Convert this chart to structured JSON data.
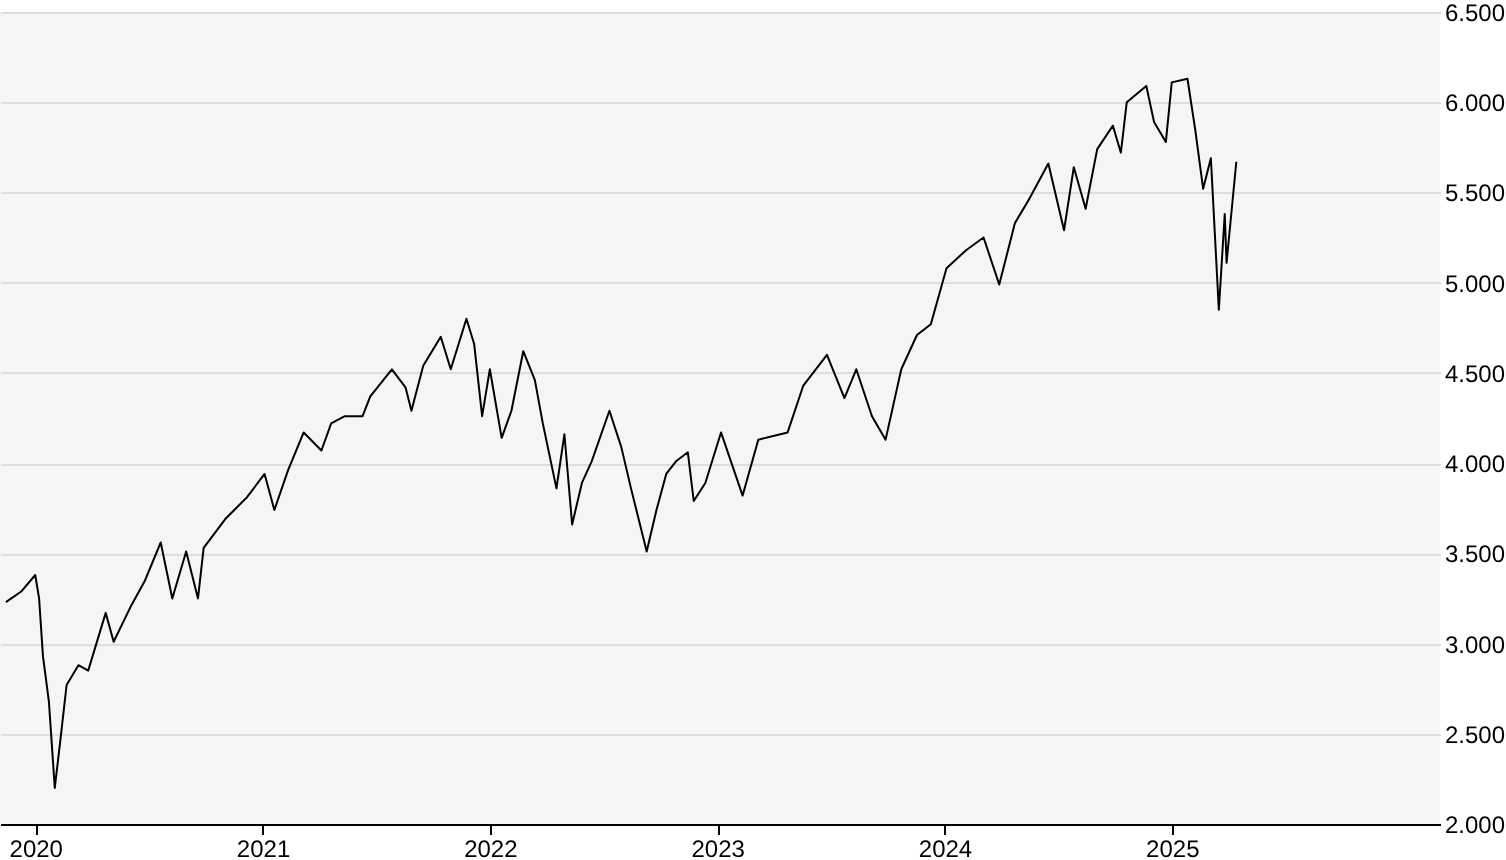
{
  "chart_data": {
    "type": "line",
    "x": [
      2019.871,
      2019.94,
      2020.0,
      2020.017,
      2020.034,
      2020.06,
      2020.086,
      2020.112,
      2020.138,
      2020.19,
      2020.233,
      2020.31,
      2020.345,
      2020.422,
      2020.483,
      2020.552,
      2020.603,
      2020.664,
      2020.716,
      2020.741,
      2020.836,
      2020.931,
      2021.009,
      2021.052,
      2021.112,
      2021.181,
      2021.259,
      2021.302,
      2021.362,
      2021.44,
      2021.474,
      2021.569,
      2021.629,
      2021.655,
      2021.707,
      2021.784,
      2021.828,
      2021.897,
      2021.931,
      2021.966,
      2022.0,
      2022.052,
      2022.095,
      2022.147,
      2022.198,
      2022.233,
      2022.293,
      2022.328,
      2022.362,
      2022.405,
      2022.448,
      2022.526,
      2022.578,
      2022.621,
      2022.69,
      2022.733,
      2022.776,
      2022.819,
      2022.871,
      2022.897,
      2022.948,
      2023.017,
      2023.112,
      2023.181,
      2023.31,
      2023.379,
      2023.483,
      2023.56,
      2023.612,
      2023.681,
      2023.741,
      2023.81,
      2023.879,
      2023.94,
      2024.009,
      2024.095,
      2024.172,
      2024.241,
      2024.31,
      2024.371,
      2024.457,
      2024.526,
      2024.569,
      2024.621,
      2024.672,
      2024.741,
      2024.776,
      2024.802,
      2024.888,
      2024.922,
      2024.974,
      2025.0,
      2025.069,
      2025.103,
      2025.138,
      2025.172,
      2025.207,
      2025.233,
      2025.241,
      2025.284
    ],
    "series": [
      {
        "color": "#000000",
        "values": [
          3230,
          3290,
          3380,
          3250,
          2930,
          2680,
          2200,
          2480,
          2770,
          2880,
          2850,
          3170,
          3010,
          3210,
          3350,
          3560,
          3250,
          3510,
          3250,
          3530,
          3690,
          3810,
          3940,
          3740,
          3960,
          4170,
          4070,
          4220,
          4260,
          4260,
          4370,
          4520,
          4420,
          4290,
          4540,
          4700,
          4520,
          4800,
          4660,
          4260,
          4520,
          4140,
          4290,
          4620,
          4460,
          4220,
          3860,
          4160,
          3660,
          3890,
          4010,
          4290,
          4090,
          3860,
          3510,
          3740,
          3940,
          4010,
          4060,
          3790,
          3890,
          4170,
          3820,
          4130,
          4170,
          4430,
          4600,
          4360,
          4520,
          4260,
          4130,
          4520,
          4710,
          4770,
          5080,
          5180,
          5250,
          4990,
          5330,
          5460,
          5660,
          5290,
          5640,
          5410,
          5740,
          5870,
          5720,
          6000,
          6090,
          5890,
          5780,
          6110,
          6130,
          5850,
          5520,
          5690,
          4850,
          5380,
          5110,
          5670
        ]
      }
    ],
    "xlim": [
      2019.845,
      2026.18
    ],
    "xticks": [
      2020,
      2021,
      2022,
      2023,
      2024,
      2025
    ],
    "ylim": [
      2000,
      6500
    ],
    "yticks": [
      {
        "value": 2000,
        "label": "2.000"
      },
      {
        "value": 2500,
        "label": "2.500"
      },
      {
        "value": 3000,
        "label": "3.000"
      },
      {
        "value": 3500,
        "label": "3.500"
      },
      {
        "value": 4000,
        "label": "4.000"
      },
      {
        "value": 4500,
        "label": "4.500"
      },
      {
        "value": 5000,
        "label": "5.000"
      },
      {
        "value": 5500,
        "label": "5.500"
      },
      {
        "value": 6000,
        "label": "6.000"
      },
      {
        "value": 6500,
        "label": "6.500"
      }
    ],
    "grid": "y",
    "legend": false,
    "marker": "none",
    "line_style": "solid"
  }
}
